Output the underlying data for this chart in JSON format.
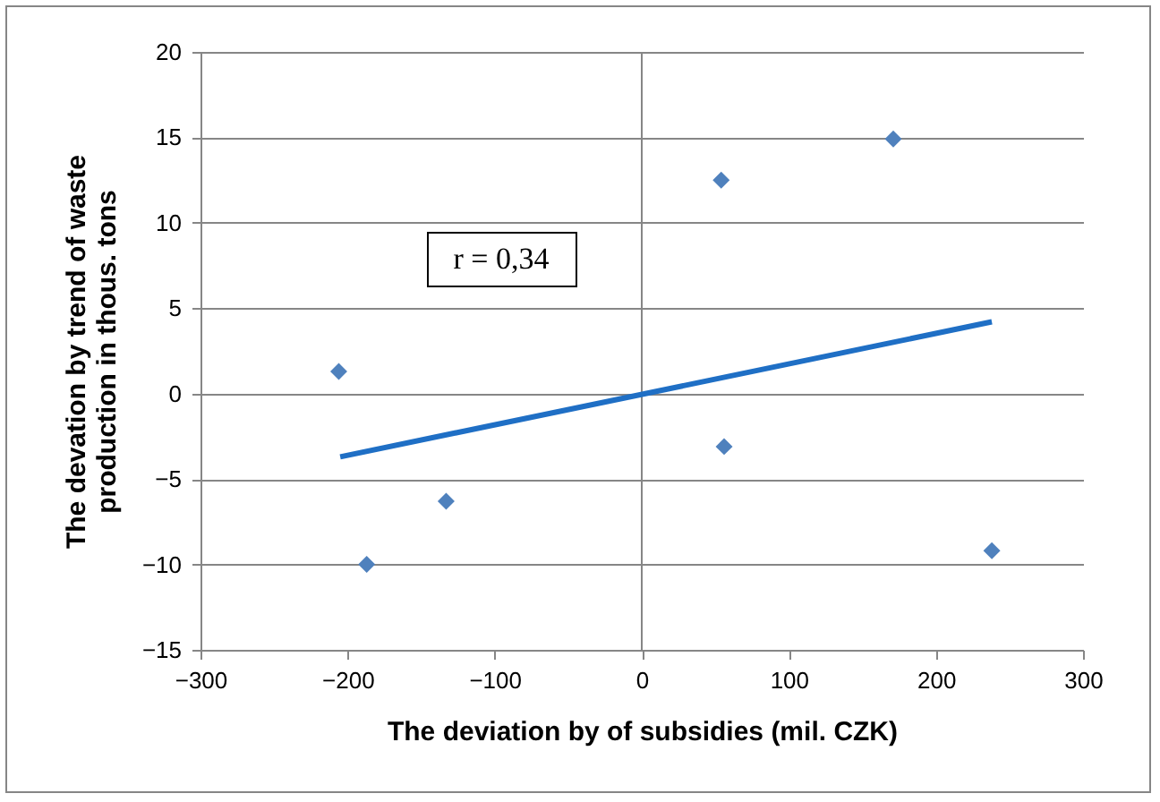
{
  "chart_data": {
    "type": "scatter",
    "xlabel": "The deviation by of subsidies (mil. CZK)",
    "ylabel": "The devation by trend of waste\nproduction in thous. tons",
    "xlim": [
      -300,
      300
    ],
    "xticks": [
      -300,
      -200,
      -100,
      0,
      100,
      200,
      300
    ],
    "ylim": [
      -15,
      20
    ],
    "yticks": [
      -15,
      -10,
      -5,
      0,
      5,
      10,
      15,
      20
    ],
    "grid": "y",
    "marker": "diamond",
    "annotations": [
      "r = 0,34"
    ],
    "ref_lines": [
      {
        "axis": "x",
        "value": 0,
        "label": null,
        "color": "#868686"
      }
    ],
    "series": [
      {
        "type": "scatter",
        "color": "#4f81bd",
        "x": [
          -206,
          -187,
          -133,
          54,
          56,
          171,
          238
        ],
        "values": [
          1.3,
          -10,
          -6.3,
          12.5,
          -3.1,
          14.9,
          -9.2
        ]
      },
      {
        "type": "line",
        "color": "#1f6fc5",
        "line_style": "solid",
        "marker": "none",
        "x": [
          -205,
          238
        ],
        "values": [
          -3.7,
          4.2
        ]
      }
    ]
  }
}
